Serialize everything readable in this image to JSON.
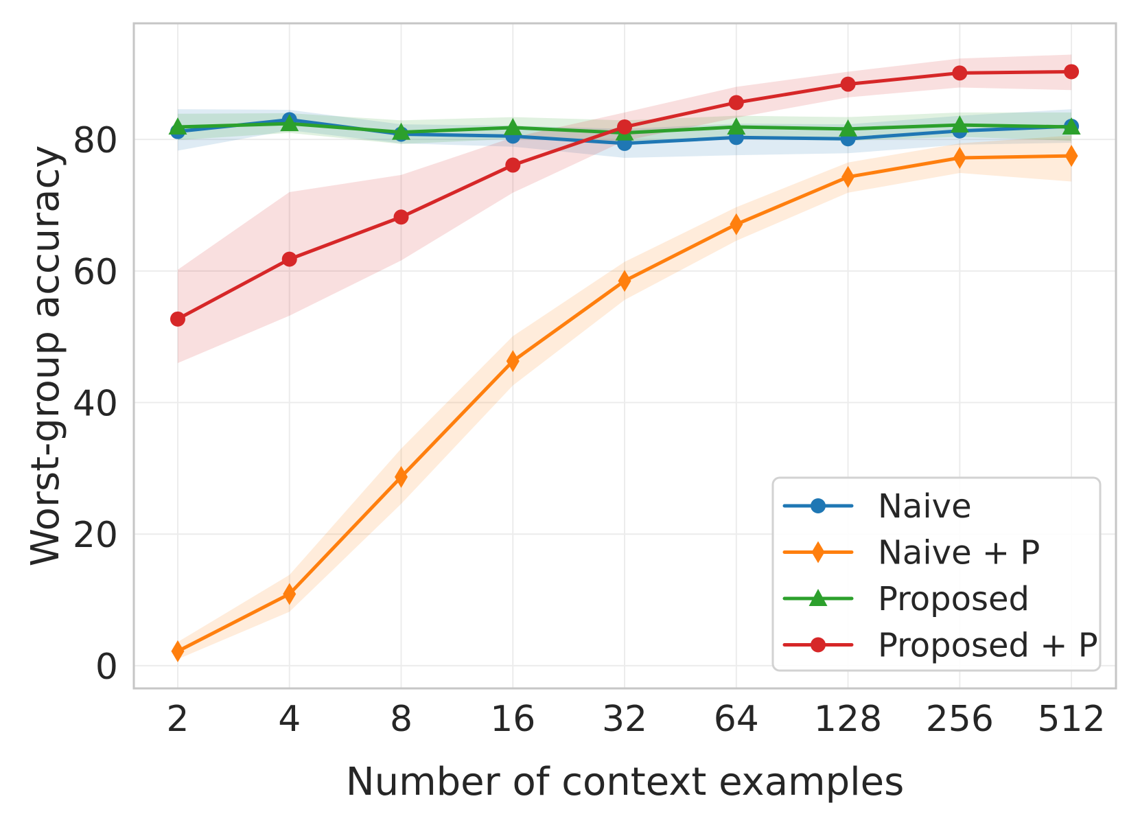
{
  "chart_data": {
    "type": "line",
    "title": "",
    "xlabel": "Number of context examples",
    "ylabel": "Worst-group accuracy",
    "xscale": "log2",
    "grid": true,
    "legend_position": "lower right",
    "xlim": [
      1.523,
      675
    ],
    "ylim": [
      -3.45,
      97.65
    ],
    "x": [
      2,
      4,
      8,
      16,
      32,
      64,
      128,
      256,
      512
    ],
    "x_tick_labels": [
      "2",
      "4",
      "8",
      "16",
      "32",
      "64",
      "128",
      "256",
      "512"
    ],
    "y_ticks": [
      0,
      20,
      40,
      60,
      80
    ],
    "y_tick_labels": [
      "0",
      "20",
      "40",
      "60",
      "80"
    ],
    "series": [
      {
        "name": "Naive",
        "color": "#1f77b4",
        "marker": "circle",
        "values": [
          81.2,
          83.0,
          80.8,
          80.5,
          79.4,
          80.3,
          80.1,
          81.3,
          82.0
        ],
        "band_lower": [
          78.3,
          81.4,
          79.4,
          78.9,
          77.2,
          77.6,
          77.9,
          79.2,
          79.5
        ],
        "band_upper": [
          84.6,
          84.5,
          82.3,
          82.1,
          81.6,
          82.4,
          82.3,
          83.6,
          84.6
        ],
        "band_alpha": 0.15
      },
      {
        "name": "Naive + P",
        "color": "#ff7f0e",
        "marker": "thin-diamond",
        "values": [
          2.2,
          10.9,
          28.7,
          46.3,
          58.5,
          67.1,
          74.3,
          77.2,
          77.5
        ],
        "band_lower": [
          1.0,
          8.2,
          24.6,
          42.6,
          55.6,
          64.6,
          71.9,
          74.9,
          73.6
        ],
        "band_upper": [
          3.6,
          13.8,
          33.0,
          50.1,
          61.4,
          69.7,
          76.5,
          79.4,
          80.6
        ],
        "band_alpha": 0.15
      },
      {
        "name": "Proposed",
        "color": "#2ca02c",
        "marker": "triangle-up",
        "values": [
          81.9,
          82.4,
          81.1,
          81.8,
          81.0,
          81.9,
          81.6,
          82.2,
          81.9
        ],
        "band_lower": [
          79.9,
          81.0,
          79.3,
          80.1,
          79.5,
          80.1,
          79.8,
          80.4,
          79.8
        ],
        "band_upper": [
          83.9,
          84.0,
          82.9,
          83.4,
          82.9,
          83.6,
          83.4,
          84.1,
          84.1
        ],
        "band_alpha": 0.15
      },
      {
        "name": "Proposed + P",
        "color": "#d62728",
        "marker": "circle",
        "values": [
          52.7,
          61.8,
          68.2,
          76.1,
          81.9,
          85.6,
          88.4,
          90.1,
          90.3
        ],
        "band_lower": [
          46.0,
          53.2,
          61.6,
          71.9,
          79.8,
          83.3,
          86.4,
          87.9,
          87.5
        ],
        "band_upper": [
          60.2,
          72.0,
          74.6,
          80.3,
          84.1,
          88.0,
          90.3,
          92.3,
          92.9
        ],
        "band_alpha": 0.15
      }
    ],
    "style": {
      "background": "#ffffff",
      "grid_color": "#ececec",
      "spine_color": "#c6c6c6",
      "text_color": "#262626",
      "line_width": 5
    }
  }
}
